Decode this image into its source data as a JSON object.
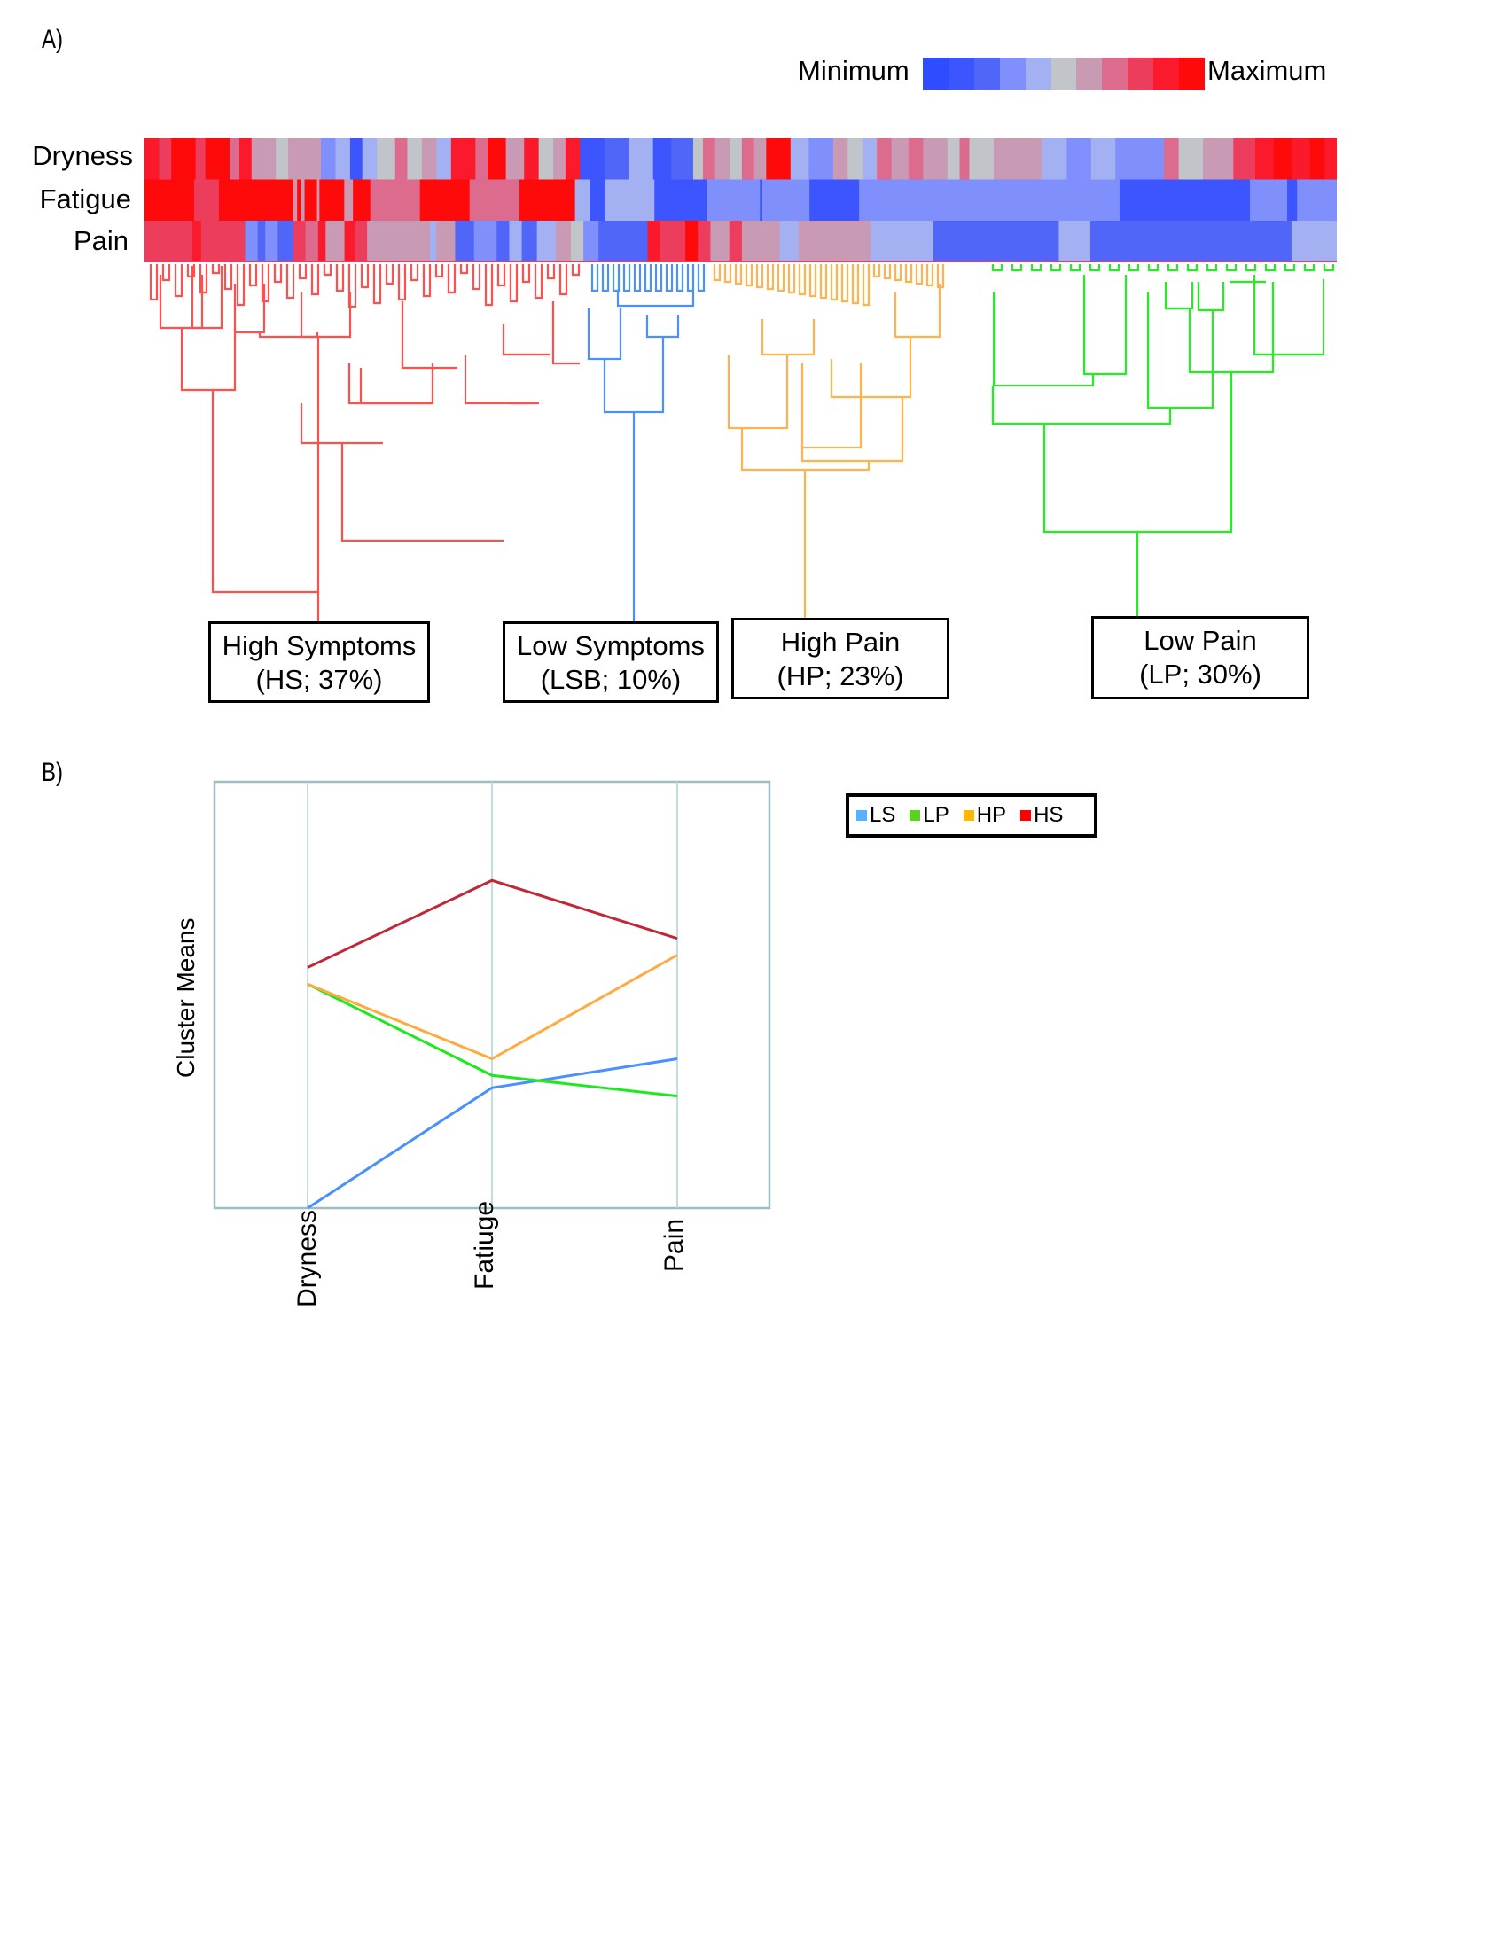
{
  "panels": {
    "a_label": "A)",
    "b_label": "B)"
  },
  "color_scale": {
    "min_label": "Minimum",
    "max_label": "Maximum",
    "steps": [
      "#2f4dff",
      "#3d55ff",
      "#5066f8",
      "#7f8ffb",
      "#a3b0f2",
      "#c1c4c8",
      "#c99ab3",
      "#dc6b8e",
      "#ec3d5d",
      "#fa1a2c",
      "#ff0a0a"
    ]
  },
  "chart_data": [
    {
      "type": "heatmap",
      "title": "Hierarchical clustering heatmap",
      "rows": [
        "Dryness",
        "Fatigue",
        "Pain"
      ],
      "color_range": [
        "Minimum",
        "Maximum"
      ],
      "column_groups": [
        "HS",
        "LSB",
        "HP",
        "LP"
      ],
      "segments_note": "each row is a list of [fraction_width, level 0-10] runs across samples",
      "row_runs": {
        "Dryness": [
          [
            0.012,
            9
          ],
          [
            0.01,
            8
          ],
          [
            0.02,
            10
          ],
          [
            0.008,
            8
          ],
          [
            0.02,
            10
          ],
          [
            0.008,
            7
          ],
          [
            0.01,
            9
          ],
          [
            0.02,
            6
          ],
          [
            0.01,
            5
          ],
          [
            0.015,
            6
          ],
          [
            0.012,
            6
          ],
          [
            0.012,
            3
          ],
          [
            0.012,
            4
          ],
          [
            0.01,
            1
          ],
          [
            0.012,
            4
          ],
          [
            0.015,
            5
          ],
          [
            0.01,
            7
          ],
          [
            0.012,
            5
          ],
          [
            0.012,
            6
          ],
          [
            0.012,
            4
          ],
          [
            0.02,
            9
          ],
          [
            0.01,
            7
          ],
          [
            0.015,
            10
          ],
          [
            0.015,
            6
          ],
          [
            0.012,
            9
          ],
          [
            0.012,
            5
          ],
          [
            0.01,
            6
          ],
          [
            0.012,
            9
          ],
          [
            0.02,
            1
          ],
          [
            0.02,
            2
          ],
          [
            0.02,
            4
          ],
          [
            0.015,
            1
          ],
          [
            0.018,
            2
          ],
          [
            0.008,
            5
          ],
          [
            0.01,
            7
          ],
          [
            0.012,
            6
          ],
          [
            0.01,
            5
          ],
          [
            0.01,
            7
          ],
          [
            0.01,
            6
          ],
          [
            0.02,
            10
          ],
          [
            0.015,
            4
          ],
          [
            0.02,
            3
          ],
          [
            0.012,
            6
          ],
          [
            0.012,
            5
          ],
          [
            0.012,
            4
          ],
          [
            0.012,
            7
          ],
          [
            0.014,
            6
          ],
          [
            0.012,
            7
          ],
          [
            0.02,
            6
          ],
          [
            0.01,
            5
          ],
          [
            0.008,
            7
          ],
          [
            0.02,
            5
          ],
          [
            0.04,
            6
          ],
          [
            0.02,
            4
          ],
          [
            0.02,
            3
          ],
          [
            0.02,
            4
          ],
          [
            0.02,
            3
          ],
          [
            0.02,
            3
          ],
          [
            0.012,
            7
          ],
          [
            0.02,
            5
          ],
          [
            0.025,
            6
          ],
          [
            0.018,
            8
          ],
          [
            0.015,
            9
          ],
          [
            0.015,
            10
          ],
          [
            0.015,
            9
          ],
          [
            0.012,
            10
          ],
          [
            0.01,
            9
          ]
        ],
        "Fatigue": [
          [
            0.04,
            10
          ],
          [
            0.02,
            8
          ],
          [
            0.06,
            10
          ],
          [
            0.003,
            6
          ],
          [
            0.003,
            10
          ],
          [
            0.003,
            6
          ],
          [
            0.01,
            10
          ],
          [
            0.002,
            6
          ],
          [
            0.02,
            10
          ],
          [
            0.007,
            6
          ],
          [
            0.014,
            10
          ],
          [
            0.04,
            7
          ],
          [
            0.04,
            10
          ],
          [
            0.04,
            7
          ],
          [
            0.045,
            10
          ],
          [
            0.012,
            4
          ],
          [
            0.012,
            1
          ],
          [
            0.02,
            4
          ],
          [
            0.02,
            4
          ],
          [
            0.03,
            1
          ],
          [
            0.012,
            1
          ],
          [
            0.015,
            3
          ],
          [
            0.006,
            3
          ],
          [
            0.022,
            3
          ],
          [
            0.002,
            1
          ],
          [
            0.038,
            3
          ],
          [
            0.04,
            1
          ],
          [
            0.21,
            3
          ],
          [
            0.105,
            1
          ],
          [
            0.03,
            3
          ],
          [
            0.008,
            1
          ],
          [
            0.032,
            3
          ]
        ],
        "Pain": [
          [
            0.008,
            8
          ],
          [
            0.03,
            8
          ],
          [
            0.007,
            9
          ],
          [
            0.035,
            8
          ],
          [
            0.01,
            3
          ],
          [
            0.006,
            2
          ],
          [
            0.01,
            3
          ],
          [
            0.012,
            2
          ],
          [
            0.01,
            8
          ],
          [
            0.01,
            7
          ],
          [
            0.006,
            9
          ],
          [
            0.015,
            6
          ],
          [
            0.008,
            9
          ],
          [
            0.01,
            8
          ],
          [
            0.01,
            6
          ],
          [
            0.04,
            6
          ],
          [
            0.005,
            4
          ],
          [
            0.015,
            6
          ],
          [
            0.015,
            2
          ],
          [
            0.018,
            3
          ],
          [
            0.01,
            2
          ],
          [
            0.01,
            4
          ],
          [
            0.012,
            2
          ],
          [
            0.015,
            4
          ],
          [
            0.012,
            6
          ],
          [
            0.01,
            5
          ],
          [
            0.012,
            3
          ],
          [
            0.014,
            2
          ],
          [
            0.025,
            2
          ],
          [
            0.01,
            9
          ],
          [
            0.02,
            8
          ],
          [
            0.01,
            10
          ],
          [
            0.01,
            8
          ],
          [
            0.015,
            6
          ],
          [
            0.01,
            8
          ],
          [
            0.03,
            6
          ],
          [
            0.015,
            4
          ],
          [
            0.012,
            6
          ],
          [
            0.045,
            6
          ],
          [
            0.05,
            4
          ],
          [
            0.1,
            2
          ],
          [
            0.025,
            4
          ],
          [
            0.16,
            2
          ],
          [
            0.036,
            4
          ]
        ]
      }
    },
    {
      "type": "line",
      "title": "",
      "xlabel": "",
      "ylabel": "Cluster Means",
      "categories": [
        "Dryness",
        "Fatiuge",
        "Pain"
      ],
      "y_units": "relative (0 = bottom of axis, 1 = top of axis); no tick labels shown",
      "ylim": [
        0,
        1
      ],
      "grid": "vertical",
      "legend": "top-right",
      "series": [
        {
          "name": "LS",
          "color": "#4a90ff",
          "values": [
            0.0,
            0.29,
            0.36
          ]
        },
        {
          "name": "LP",
          "color": "#1ee81e",
          "values": [
            0.54,
            0.32,
            0.27
          ]
        },
        {
          "name": "HP",
          "color": "#ffaa40",
          "values": [
            0.54,
            0.36,
            0.61
          ]
        },
        {
          "name": "HS",
          "color": "#c0283a",
          "values": [
            0.58,
            0.79,
            0.65
          ]
        }
      ]
    }
  ],
  "clusters": [
    {
      "key": "HS",
      "line1": "High Symptoms",
      "line2": "(HS; 37%)",
      "color": "#ff5050"
    },
    {
      "key": "LSB",
      "line1": "Low Symptoms",
      "line2": "(LSB; 10%)",
      "color": "#4a90ff"
    },
    {
      "key": "HP",
      "line1": "High Pain",
      "line2": "(HP; 23%)",
      "color": "#ffb24d"
    },
    {
      "key": "LP",
      "line1": "Low Pain",
      "line2": "(LP; 30%)",
      "color": "#22ee22"
    }
  ],
  "legend": [
    {
      "label": "LS",
      "color": "#59b0ff"
    },
    {
      "label": "LP",
      "color": "#5ed020"
    },
    {
      "label": "HP",
      "color": "#ffb800"
    },
    {
      "label": "HS",
      "color": "#ff0000"
    }
  ]
}
